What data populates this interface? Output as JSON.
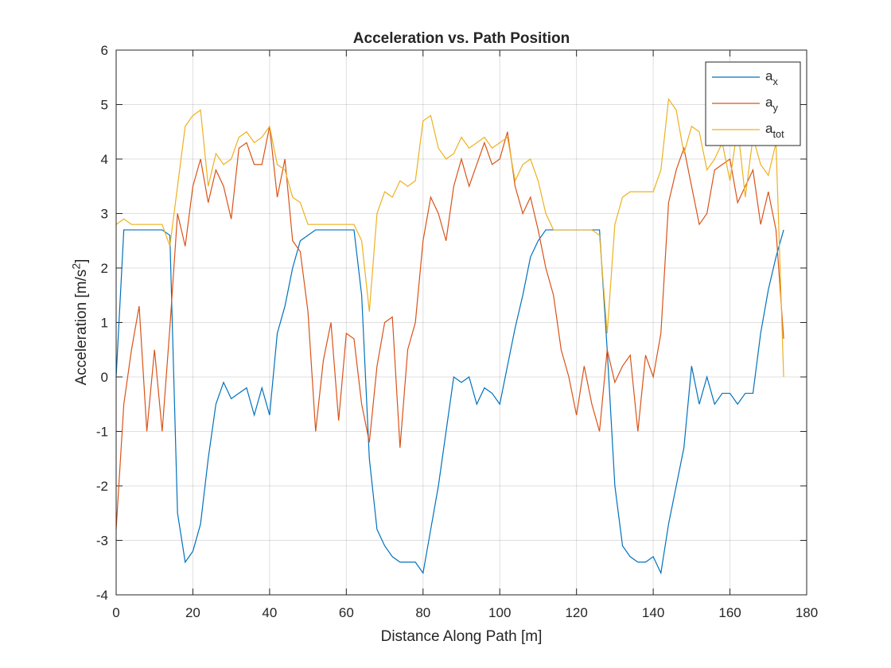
{
  "chart_data": {
    "type": "line",
    "title": "Acceleration vs. Path Position",
    "x_label": "Distance Along Path [m]",
    "y_label": "Acceleration [m/s^2]",
    "x": [
      0,
      2,
      4,
      6,
      8,
      10,
      12,
      14,
      16,
      18,
      20,
      22,
      24,
      26,
      28,
      30,
      32,
      34,
      36,
      38,
      40,
      42,
      44,
      46,
      48,
      50,
      52,
      54,
      56,
      58,
      60,
      62,
      64,
      66,
      68,
      70,
      72,
      74,
      76,
      78,
      80,
      82,
      84,
      86,
      88,
      90,
      92,
      94,
      96,
      98,
      100,
      102,
      104,
      106,
      108,
      110,
      112,
      114,
      116,
      118,
      120,
      122,
      124,
      126,
      128,
      130,
      132,
      134,
      136,
      138,
      140,
      142,
      144,
      146,
      148,
      150,
      152,
      154,
      156,
      158,
      160,
      162,
      164,
      166,
      168,
      170,
      172,
      174
    ],
    "series": [
      {
        "name": "a_x",
        "color": "#0072bd",
        "values": [
          0,
          2.7,
          2.7,
          2.7,
          2.7,
          2.7,
          2.7,
          2.6,
          -2.5,
          -3.4,
          -3.2,
          -2.7,
          -1.5,
          -0.5,
          -0.1,
          -0.4,
          -0.3,
          -0.2,
          -0.7,
          -0.2,
          -0.7,
          0.8,
          1.3,
          2.0,
          2.5,
          2.6,
          2.7,
          2.7,
          2.7,
          2.7,
          2.7,
          2.7,
          1.5,
          -1.5,
          -2.8,
          -3.1,
          -3.3,
          -3.4,
          -3.4,
          -3.4,
          -3.6,
          -2.8,
          -2.0,
          -1.0,
          0.0,
          -0.1,
          0.0,
          -0.5,
          -0.2,
          -0.3,
          -0.5,
          0.2,
          0.9,
          1.5,
          2.2,
          2.5,
          2.7,
          2.7,
          2.7,
          2.7,
          2.7,
          2.7,
          2.7,
          2.7,
          0.5,
          -2.0,
          -3.1,
          -3.3,
          -3.4,
          -3.4,
          -3.3,
          -3.6,
          -2.7,
          -2.0,
          -1.3,
          0.2,
          -0.5,
          0.0,
          -0.5,
          -0.3,
          -0.3,
          -0.5,
          -0.3,
          -0.3,
          0.8,
          1.6,
          2.2,
          2.7
        ]
      },
      {
        "name": "a_y",
        "color": "#d95319",
        "values": [
          -2.8,
          -0.5,
          0.5,
          1.3,
          -1.0,
          0.5,
          -1.0,
          0.9,
          3.0,
          2.4,
          3.5,
          4.0,
          3.2,
          3.8,
          3.5,
          2.9,
          4.2,
          4.3,
          3.9,
          3.9,
          4.6,
          3.3,
          4.0,
          2.5,
          2.3,
          1.2,
          -1.0,
          0.3,
          1.0,
          -0.8,
          0.8,
          0.7,
          -0.5,
          -1.2,
          0.2,
          1.0,
          1.1,
          -1.3,
          0.5,
          1.0,
          2.5,
          3.3,
          3.0,
          2.5,
          3.5,
          4.0,
          3.5,
          3.9,
          4.3,
          3.9,
          4.0,
          4.5,
          3.5,
          3.0,
          3.3,
          2.7,
          2.0,
          1.5,
          0.5,
          0.0,
          -0.7,
          0.2,
          -0.5,
          -1.0,
          0.5,
          -0.1,
          0.2,
          0.4,
          -1.0,
          0.4,
          0.0,
          0.8,
          3.2,
          3.8,
          4.2,
          3.5,
          2.8,
          3.0,
          3.8,
          3.9,
          4.0,
          3.2,
          3.5,
          3.8,
          2.8,
          3.4,
          2.7,
          0.7
        ]
      },
      {
        "name": "a_{tot}",
        "color": "#edb120",
        "values": [
          2.8,
          2.9,
          2.8,
          2.8,
          2.8,
          2.8,
          2.8,
          2.4,
          3.5,
          4.6,
          4.8,
          4.9,
          3.5,
          4.1,
          3.9,
          4.0,
          4.4,
          4.5,
          4.3,
          4.4,
          4.6,
          3.9,
          3.8,
          3.3,
          3.2,
          2.8,
          2.8,
          2.8,
          2.8,
          2.8,
          2.8,
          2.8,
          2.5,
          1.2,
          3.0,
          3.4,
          3.3,
          3.6,
          3.5,
          3.6,
          4.7,
          4.8,
          4.2,
          4.0,
          4.1,
          4.4,
          4.2,
          4.3,
          4.4,
          4.2,
          4.3,
          4.4,
          3.6,
          3.9,
          4.0,
          3.6,
          3.0,
          2.7,
          2.7,
          2.7,
          2.7,
          2.7,
          2.7,
          2.6,
          0.8,
          2.8,
          3.3,
          3.4,
          3.4,
          3.4,
          3.4,
          3.8,
          5.1,
          4.9,
          4.1,
          4.6,
          4.5,
          3.8,
          4.0,
          4.3,
          3.6,
          4.6,
          3.3,
          4.4,
          3.9,
          3.7,
          4.3,
          0.0
        ]
      }
    ],
    "xlim": [
      0,
      180
    ],
    "xticks": [
      0,
      20,
      40,
      60,
      80,
      100,
      120,
      140,
      160,
      180
    ],
    "ylim": [
      -4,
      6
    ],
    "yticks": [
      -4,
      -3,
      -2,
      -1,
      0,
      1,
      2,
      3,
      4,
      5,
      6
    ],
    "grid": true,
    "legend_position": "northeast"
  }
}
